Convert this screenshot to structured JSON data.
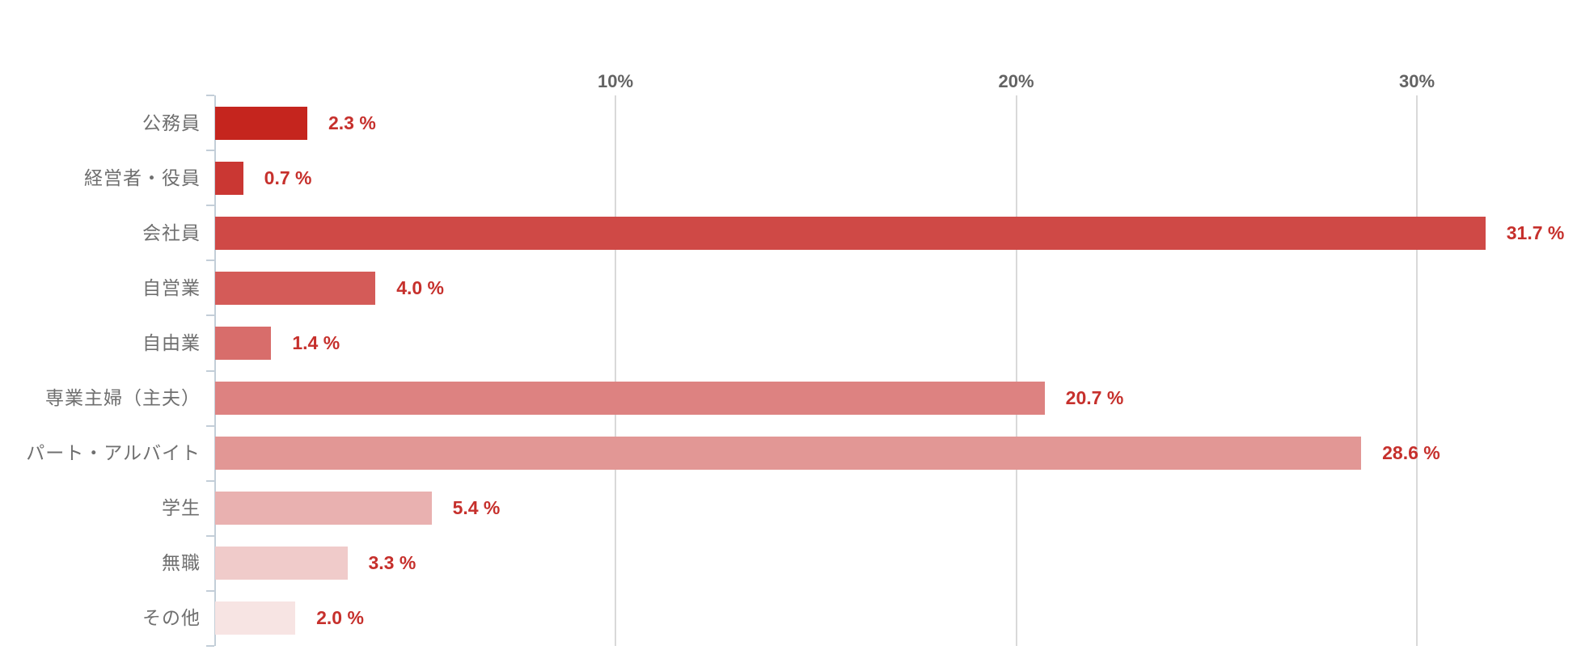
{
  "chart_data": {
    "type": "bar",
    "orientation": "horizontal",
    "title": "",
    "categories": [
      "公務員",
      "経営者・役員",
      "会社員",
      "自営業",
      "自由業",
      "専業主婦（主夫）",
      "パート・アルバイト",
      "学生",
      "無職",
      "その他"
    ],
    "values": [
      2.3,
      0.7,
      31.7,
      4.0,
      1.4,
      20.7,
      28.6,
      5.4,
      3.3,
      2.0
    ],
    "value_labels": [
      "2.3 %",
      "0.7 %",
      "31.7 %",
      "4.0 %",
      "1.4 %",
      "20.7 %",
      "28.6 %",
      "5.4 %",
      "3.3 %",
      "2.0 %"
    ],
    "bar_colors": [
      "#c5251e",
      "#ca3733",
      "#cf4946",
      "#d45b58",
      "#d86d6b",
      "#dd8281",
      "#e29795",
      "#e9b1b0",
      "#f0cbca",
      "#f7e4e3"
    ],
    "x_axis": {
      "tick_labels": [
        "10%",
        "20%",
        "30%"
      ],
      "tick_values": [
        10,
        20,
        30
      ],
      "min": 0,
      "max": 34,
      "unit": "%"
    },
    "grid": true,
    "legend": "none",
    "colors": {
      "value_label": "#c6302c",
      "category_label": "#6f6f6f",
      "axis_tick_label": "#636363",
      "gridline": "#d9d9d9",
      "axis_line": "#c3ced8",
      "background": "#ffffff"
    }
  }
}
